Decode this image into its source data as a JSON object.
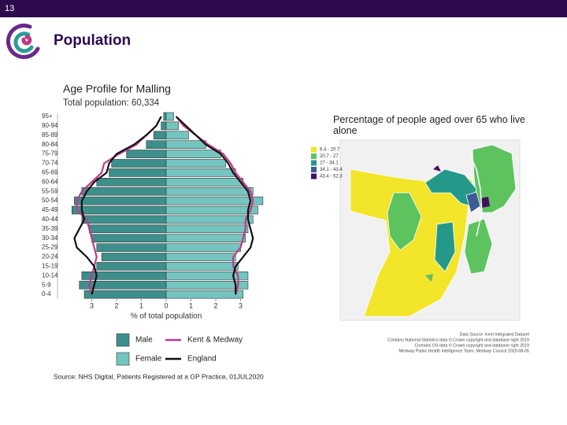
{
  "slide": {
    "number": "13",
    "title": "Population",
    "source": "Source: NHS Digital, Patients Registered at a GP Practice, 01JUL2020"
  },
  "chart_data": {
    "type": "pyramid",
    "title": "Age Profile for Malling",
    "subtitle": "Total population: 60,334",
    "x_label": "% of total population",
    "categories": [
      "95+",
      "90-94",
      "85-89",
      "80-84",
      "75-79",
      "70-74",
      "65-69",
      "60-64",
      "55-59",
      "50-54",
      "45-49",
      "40-44",
      "35-39",
      "30-34",
      "25-29",
      "20-24",
      "15-19",
      "10-14",
      "5-9",
      "0-4"
    ],
    "series": [
      {
        "name": "Male",
        "color": "#3d8f8c",
        "values": [
          -0.1,
          -0.2,
          -0.5,
          -0.8,
          -1.6,
          -2.2,
          -2.3,
          -2.8,
          -3.4,
          -3.7,
          -3.8,
          -3.4,
          -3.1,
          -3.0,
          -2.8,
          -2.6,
          -2.8,
          -3.4,
          -3.5,
          -3.3
        ]
      },
      {
        "name": "Female",
        "color": "#74c4bf",
        "values": [
          0.3,
          0.5,
          0.9,
          1.6,
          2.2,
          2.4,
          2.8,
          3.1,
          3.5,
          3.9,
          3.7,
          3.5,
          3.3,
          3.2,
          3.0,
          2.8,
          2.9,
          3.3,
          3.3,
          3.1
        ]
      }
    ],
    "lines": [
      {
        "name": "Kent & Medway",
        "color": "#c0398a",
        "male": [
          -0.2,
          -0.4,
          -0.8,
          -1.2,
          -1.9,
          -2.5,
          -2.6,
          -3.0,
          -3.4,
          -3.6,
          -3.6,
          -3.2,
          -3.1,
          -3.0,
          -2.9,
          -2.8,
          -2.9,
          -3.0,
          -3.1,
          -3.0
        ],
        "female": [
          0.4,
          0.7,
          1.2,
          1.7,
          2.3,
          2.6,
          2.8,
          3.1,
          3.4,
          3.5,
          3.4,
          3.2,
          3.2,
          3.1,
          3.0,
          2.7,
          2.7,
          2.9,
          2.9,
          2.8
        ]
      },
      {
        "name": "England",
        "color": "#111111",
        "male": [
          -0.2,
          -0.4,
          -0.8,
          -1.3,
          -2.0,
          -2.3,
          -2.4,
          -2.9,
          -3.2,
          -3.4,
          -3.4,
          -3.3,
          -3.5,
          -3.7,
          -3.6,
          -3.2,
          -2.9,
          -2.8,
          -2.9,
          -3.0
        ],
        "female": [
          0.4,
          0.8,
          1.2,
          1.6,
          2.2,
          2.5,
          2.7,
          3.0,
          3.3,
          3.4,
          3.3,
          3.3,
          3.4,
          3.5,
          3.4,
          3.1,
          2.8,
          2.7,
          2.8,
          2.8
        ]
      }
    ],
    "xlim": [
      -4.2,
      4.2
    ],
    "xticks": [
      {
        "value": -3,
        "label": "3"
      },
      {
        "value": -2,
        "label": "2"
      },
      {
        "value": -1,
        "label": "1"
      },
      0,
      1,
      2,
      3
    ]
  },
  "map": {
    "title": "Percentage of people aged over 65 who live alone",
    "legend": [
      {
        "label": "6.4 - 20.7",
        "color": "#f2e52a"
      },
      {
        "label": "20.7 - 27",
        "color": "#5cc35e"
      },
      {
        "label": "27 - 34.1",
        "color": "#24998a"
      },
      {
        "label": "34.1 - 43.4",
        "color": "#3b5c94"
      },
      {
        "label": "43.4 - 52.3",
        "color": "#44105e"
      }
    ],
    "credits": [
      "Data Source: Kent Integrated Dataset",
      "Contains National Statistics data © Crown copyright and database right 2019",
      "Contains OS data © Crown copyright and database right 2019",
      "Medway Public Health Intelligence Team, Medway Council 2020-08-05"
    ]
  }
}
